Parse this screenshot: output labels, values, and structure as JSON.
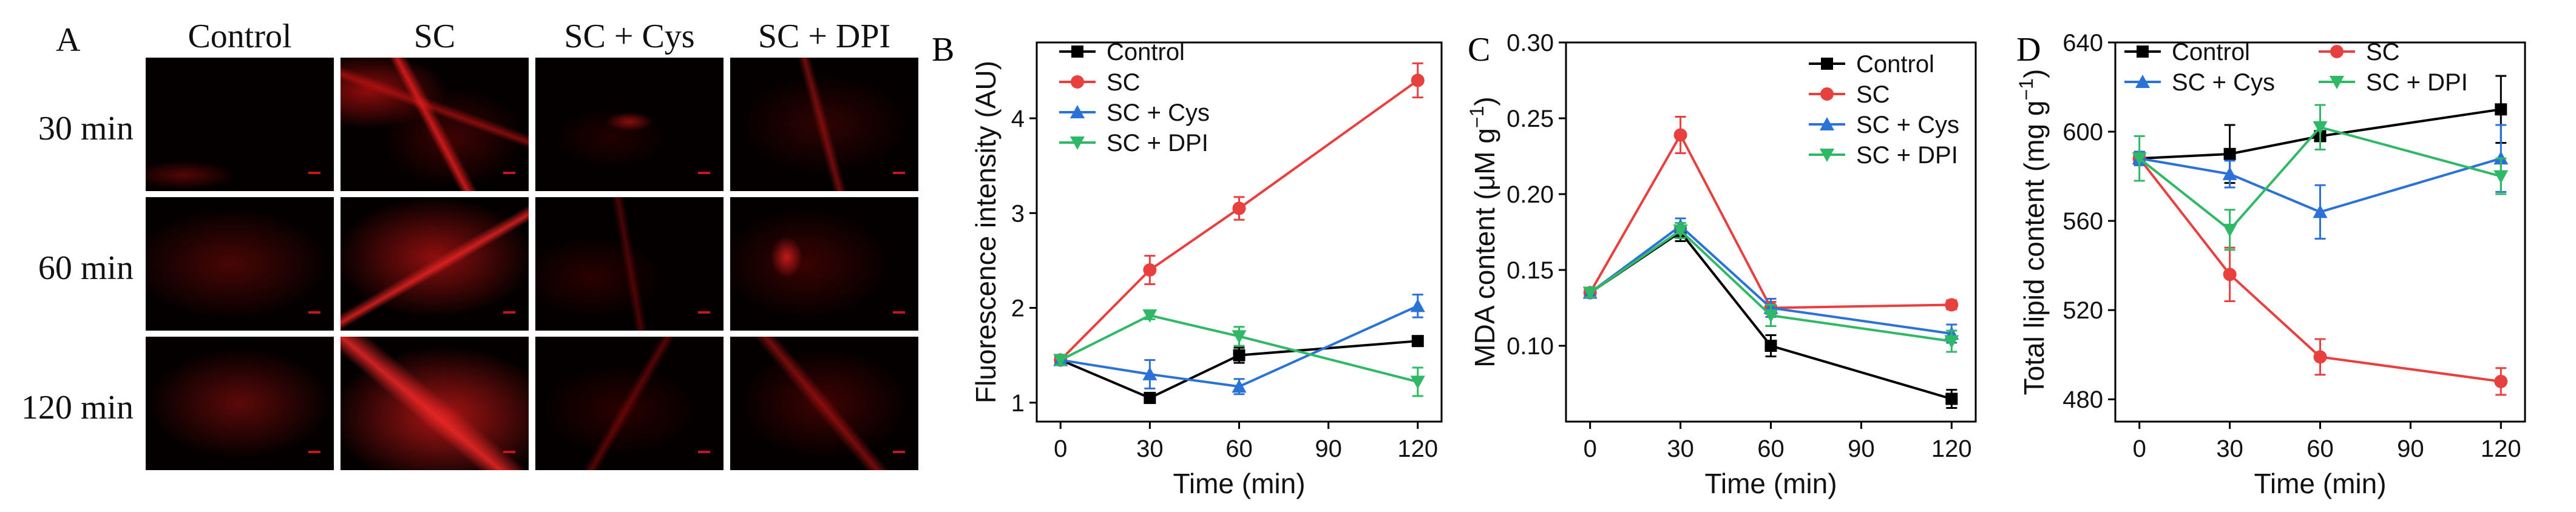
{
  "panel_a": {
    "letter": "A",
    "columns": [
      "Control",
      "SC",
      "SC + Cys",
      "SC + DPI"
    ],
    "rows": [
      "30 min",
      "60 min",
      "120 min"
    ]
  },
  "chart_data": [
    {
      "panel": "B",
      "type": "line",
      "xlabel": "Time (min)",
      "ylabel": "Fluorescence intensity (AU)",
      "x": [
        0,
        30,
        60,
        120
      ],
      "xlim": [
        -8,
        128
      ],
      "ylim": [
        0.8,
        4.8
      ],
      "xticks": [
        0,
        30,
        60,
        90,
        120
      ],
      "yticks": [
        1,
        2,
        3,
        4
      ],
      "xtick_labels": [
        "0",
        "30",
        "60",
        "90",
        "120"
      ],
      "ytick_labels": [
        "1",
        "2",
        "3",
        "4"
      ],
      "series": [
        {
          "name": "Control",
          "color": "#000000",
          "marker": "square",
          "values": [
            1.45,
            1.05,
            1.5,
            1.65
          ],
          "errors": [
            0.05,
            0.05,
            0.08,
            0.05
          ]
        },
        {
          "name": "SC",
          "color": "#e8403f",
          "marker": "circle",
          "values": [
            1.45,
            2.4,
            3.05,
            4.4
          ],
          "errors": [
            0.05,
            0.15,
            0.12,
            0.18
          ]
        },
        {
          "name": "SC + Cys",
          "color": "#2a72d8",
          "marker": "triangle-up",
          "values": [
            1.45,
            1.3,
            1.17,
            2.02
          ],
          "errors": [
            0.05,
            0.15,
            0.08,
            0.12
          ]
        },
        {
          "name": "SC + DPI",
          "color": "#2fb866",
          "marker": "triangle-down",
          "values": [
            1.45,
            1.92,
            1.7,
            1.22
          ],
          "errors": [
            0.05,
            0.04,
            0.1,
            0.15
          ]
        }
      ],
      "legend_location": "top-left"
    },
    {
      "panel": "C",
      "type": "line",
      "xlabel": "Time (min)",
      "ylabel": "MDA content (μM g",
      "ylabel_sup": "−1",
      "ylabel_tail": ")",
      "x": [
        0,
        30,
        60,
        120
      ],
      "xlim": [
        -8,
        128
      ],
      "ylim": [
        0.05,
        0.3
      ],
      "xticks": [
        0,
        30,
        60,
        90,
        120
      ],
      "yticks": [
        0.1,
        0.15,
        0.2,
        0.25,
        0.3
      ],
      "xtick_labels": [
        "0",
        "30",
        "60",
        "90",
        "120"
      ],
      "ytick_labels": [
        "0.10",
        "0.15",
        "0.20",
        "0.25",
        "0.30"
      ],
      "series": [
        {
          "name": "Control",
          "color": "#000000",
          "marker": "square",
          "values": [
            0.135,
            0.175,
            0.1,
            0.065
          ],
          "errors": [
            0.003,
            0.006,
            0.007,
            0.006
          ]
        },
        {
          "name": "SC",
          "color": "#e8403f",
          "marker": "circle",
          "values": [
            0.135,
            0.239,
            0.125,
            0.127
          ],
          "errors": [
            0.003,
            0.012,
            0.004,
            0.003
          ]
        },
        {
          "name": "SC + Cys",
          "color": "#2a72d8",
          "marker": "triangle-up",
          "values": [
            0.135,
            0.179,
            0.125,
            0.108
          ],
          "errors": [
            0.003,
            0.005,
            0.006,
            0.006
          ]
        },
        {
          "name": "SC + DPI",
          "color": "#2fb866",
          "marker": "triangle-down",
          "values": [
            0.135,
            0.176,
            0.12,
            0.103
          ],
          "errors": [
            0.003,
            0.005,
            0.007,
            0.007
          ]
        }
      ],
      "legend_location": "top-right"
    },
    {
      "panel": "D",
      "type": "line",
      "xlabel": "Time (min)",
      "ylabel": "Total lipid content (mg g",
      "ylabel_sup": "−1",
      "ylabel_tail": ")",
      "x": [
        0,
        30,
        60,
        120
      ],
      "xlim": [
        -8,
        128
      ],
      "ylim": [
        470,
        640
      ],
      "xticks": [
        0,
        30,
        60,
        90,
        120
      ],
      "yticks": [
        480,
        520,
        560,
        600,
        640
      ],
      "xtick_labels": [
        "0",
        "30",
        "60",
        "90",
        "120"
      ],
      "ytick_labels": [
        "480",
        "520",
        "560",
        "600",
        "640"
      ],
      "series": [
        {
          "name": "Control",
          "color": "#000000",
          "marker": "square",
          "values": [
            588,
            590,
            598,
            610
          ],
          "errors": [
            3,
            13,
            6,
            15
          ]
        },
        {
          "name": "SC",
          "color": "#e8403f",
          "marker": "circle",
          "values": [
            588,
            536,
            499,
            488
          ],
          "errors": [
            3,
            12,
            8,
            6
          ]
        },
        {
          "name": "SC + Cys",
          "color": "#2a72d8",
          "marker": "triangle-up",
          "values": [
            588,
            581,
            564,
            588
          ],
          "errors": [
            3,
            6,
            12,
            15
          ]
        },
        {
          "name": "SC + DPI",
          "color": "#2fb866",
          "marker": "triangle-down",
          "values": [
            588,
            556,
            602,
            580
          ],
          "errors": [
            10,
            9,
            10,
            8
          ]
        }
      ],
      "legend_location": "top (two columns)"
    }
  ]
}
